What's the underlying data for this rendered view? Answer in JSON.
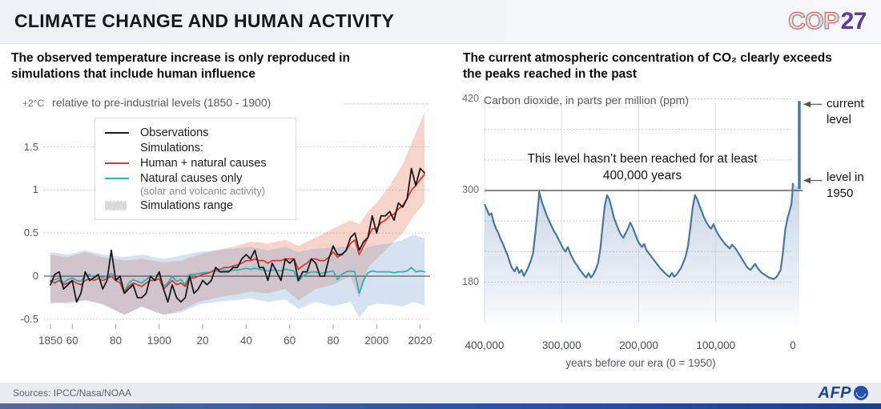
{
  "header": {
    "title": "CLIMATE CHANGE AND HUMAN ACTIVITY",
    "cop27_cop": "COP",
    "cop27_num": "27"
  },
  "footer": {
    "sources": "Sources: IPCC/Nasa/NOAA",
    "afp_label": "AFP"
  },
  "colors": {
    "accent_red": "#d63a30",
    "accent_cyan": "#2eb0c1",
    "obs_black": "#1a1a1a",
    "hn_band": "rgba(230,122,86,0.32)",
    "nat_band": "rgba(128,168,206,0.33)",
    "co2_line": "#4678a4",
    "co2_fill": "rgba(168,188,214,0.6)",
    "reference_line": "#3c3c3c",
    "grid_dot": "#bfc2c6",
    "grid_warm_dot": "#ccb9b1",
    "grid_vertical": "#e0e3e8",
    "header_bg": "#eef0f5",
    "footer_bg": "#e9ebf0",
    "cop_blue": "#c7e4f1",
    "cop_outline": "#da6a5e",
    "cop_purple": "#5e3a90",
    "afp_blue": "#1b449b",
    "bottom_bar_left": "#56679b",
    "bottom_bar_right": "#1c3f8f",
    "text_dark": "#16161c",
    "text_gray": "#55595e"
  },
  "chart_data": [
    {
      "id": "temperature-simulations",
      "type": "line",
      "title": "The observed temperature increase is only reproduced in simulations that include human influence",
      "unit_note_prefix": "+2°C",
      "axis_note": "relative to pre-industrial levels (1850 - 1900)",
      "xlim": [
        1850,
        2022
      ],
      "ylim": [
        -0.6,
        2.0
      ],
      "yticks": {
        "values": [
          1.5,
          1,
          0.5,
          0,
          -0.5
        ],
        "labels": [
          "1.5",
          "1",
          "0.5",
          "0",
          "-0.5"
        ]
      },
      "top_dotted_level": 2,
      "xticks": {
        "values": [
          1850,
          1860,
          1880,
          1900,
          1920,
          1940,
          1960,
          1980,
          2000,
          2020
        ],
        "labels": [
          "1850",
          "60",
          "80",
          "1900",
          "20",
          "40",
          "60",
          "80",
          "2000",
          "2020"
        ]
      },
      "legend": {
        "observations": "Observations",
        "simulations_header": "Simulations:",
        "human_natural": "Human + natural causes",
        "natural_only": "Natural causes only",
        "natural_only_sub": "(solar and volcanic activity)",
        "range": "Simulations range"
      },
      "x": [
        1850,
        1852,
        1854,
        1856,
        1858,
        1860,
        1862,
        1864,
        1866,
        1868,
        1870,
        1872,
        1874,
        1876,
        1878,
        1880,
        1882,
        1884,
        1886,
        1888,
        1890,
        1892,
        1894,
        1896,
        1898,
        1900,
        1902,
        1904,
        1906,
        1908,
        1910,
        1912,
        1914,
        1916,
        1918,
        1920,
        1922,
        1924,
        1926,
        1928,
        1930,
        1932,
        1934,
        1936,
        1938,
        1940,
        1942,
        1944,
        1946,
        1948,
        1950,
        1952,
        1954,
        1956,
        1958,
        1960,
        1962,
        1964,
        1966,
        1968,
        1970,
        1972,
        1974,
        1976,
        1978,
        1980,
        1982,
        1984,
        1986,
        1988,
        1990,
        1992,
        1994,
        1996,
        1998,
        2000,
        2002,
        2004,
        2006,
        2008,
        2010,
        2012,
        2014,
        2016,
        2018,
        2020,
        2022
      ],
      "series": [
        {
          "name": "Observations",
          "color": "#1a1a1a",
          "values": [
            -0.1,
            0.02,
            0.05,
            -0.15,
            -0.1,
            -0.05,
            -0.3,
            -0.2,
            0.05,
            -0.05,
            -0.02,
            0.02,
            -0.15,
            -0.05,
            0.3,
            -0.05,
            0.0,
            -0.2,
            -0.15,
            -0.1,
            -0.25,
            -0.25,
            -0.2,
            0.0,
            -0.05,
            0.05,
            -0.15,
            -0.3,
            -0.1,
            -0.25,
            -0.3,
            -0.25,
            0.0,
            -0.2,
            -0.15,
            -0.05,
            -0.1,
            -0.05,
            0.1,
            0.05,
            0.05,
            0.05,
            0.1,
            0.1,
            0.2,
            0.25,
            0.2,
            0.3,
            0.1,
            0.1,
            -0.05,
            0.15,
            0.05,
            -0.05,
            0.2,
            0.15,
            0.2,
            -0.05,
            0.05,
            0.05,
            0.2,
            0.15,
            0.0,
            0.0,
            0.2,
            0.35,
            0.25,
            0.25,
            0.3,
            0.45,
            0.5,
            0.3,
            0.4,
            0.45,
            0.7,
            0.5,
            0.7,
            0.7,
            0.75,
            0.65,
            0.85,
            0.8,
            0.9,
            1.25,
            1.05,
            1.25,
            1.2
          ]
        },
        {
          "name": "Human + natural causes",
          "color": "#d63a30",
          "values": [
            -0.05,
            -0.08,
            -0.05,
            -0.1,
            -0.08,
            -0.05,
            -0.08,
            -0.1,
            -0.05,
            -0.03,
            -0.05,
            -0.03,
            -0.05,
            -0.03,
            0.0,
            -0.05,
            -0.08,
            -0.2,
            -0.12,
            -0.08,
            -0.1,
            -0.12,
            -0.08,
            -0.05,
            -0.05,
            -0.03,
            -0.15,
            -0.1,
            -0.05,
            -0.1,
            -0.08,
            -0.12,
            -0.02,
            -0.02,
            0.0,
            0.02,
            0.03,
            0.05,
            0.08,
            0.08,
            0.1,
            0.1,
            0.12,
            0.13,
            0.15,
            0.18,
            0.18,
            0.2,
            0.18,
            0.18,
            0.15,
            0.18,
            0.18,
            0.18,
            0.2,
            0.2,
            0.2,
            0.08,
            0.12,
            0.15,
            0.2,
            0.2,
            0.18,
            0.18,
            0.22,
            0.28,
            0.22,
            0.25,
            0.3,
            0.38,
            0.42,
            0.25,
            0.35,
            0.45,
            0.55,
            0.55,
            0.62,
            0.65,
            0.7,
            0.72,
            0.78,
            0.82,
            0.9,
            1.0,
            1.05,
            1.12,
            1.18
          ]
        },
        {
          "name": "Natural causes only",
          "color": "#2eb0c1",
          "values": [
            -0.06,
            -0.04,
            -0.02,
            -0.08,
            -0.04,
            -0.02,
            -0.05,
            -0.06,
            0.0,
            0.02,
            -0.02,
            0.0,
            -0.02,
            0.0,
            0.03,
            -0.02,
            -0.05,
            -0.18,
            -0.08,
            -0.04,
            -0.06,
            -0.08,
            -0.04,
            0.0,
            0.0,
            0.02,
            -0.12,
            -0.08,
            0.0,
            -0.06,
            -0.04,
            -0.1,
            0.02,
            0.02,
            0.03,
            0.04,
            0.04,
            0.05,
            0.06,
            0.05,
            0.07,
            0.06,
            0.07,
            0.07,
            0.08,
            0.09,
            0.08,
            0.09,
            0.08,
            0.07,
            0.06,
            0.07,
            0.07,
            0.06,
            0.08,
            0.07,
            0.06,
            -0.06,
            0.0,
            0.03,
            0.05,
            0.05,
            0.03,
            0.04,
            0.05,
            0.06,
            -0.04,
            0.02,
            0.05,
            0.06,
            0.05,
            -0.2,
            -0.05,
            0.04,
            0.06,
            0.05,
            0.05,
            0.05,
            0.05,
            0.04,
            0.05,
            0.05,
            0.06,
            0.1,
            0.05,
            0.06,
            0.05
          ]
        }
      ],
      "bands": [
        {
          "name": "Human + natural simulations range",
          "color": "rgba(230,122,86,0.32)",
          "years": [
            1850,
            1858,
            1866,
            1874,
            1884,
            1892,
            1902,
            1910,
            1918,
            1926,
            1934,
            1942,
            1950,
            1958,
            1964,
            1972,
            1980,
            1988,
            1992,
            1996,
            2000,
            2006,
            2012,
            2017,
            2022
          ],
          "upper": [
            0.25,
            0.22,
            0.28,
            0.22,
            0.18,
            0.2,
            0.16,
            0.18,
            0.25,
            0.3,
            0.34,
            0.4,
            0.38,
            0.42,
            0.35,
            0.45,
            0.55,
            0.65,
            0.6,
            0.75,
            0.85,
            1.05,
            1.3,
            1.6,
            1.9
          ],
          "lower": [
            -0.32,
            -0.3,
            -0.28,
            -0.32,
            -0.45,
            -0.35,
            -0.45,
            -0.4,
            -0.3,
            -0.25,
            -0.22,
            -0.18,
            -0.2,
            -0.15,
            -0.28,
            -0.15,
            -0.1,
            0.0,
            -0.25,
            0.1,
            0.2,
            0.35,
            0.5,
            0.7,
            0.85
          ]
        },
        {
          "name": "Natural-only simulations range",
          "color": "rgba(128,168,206,0.33)",
          "years": [
            1850,
            1858,
            1866,
            1874,
            1884,
            1892,
            1902,
            1910,
            1918,
            1926,
            1934,
            1942,
            1950,
            1958,
            1964,
            1972,
            1980,
            1988,
            1992,
            1996,
            2000,
            2006,
            2012,
            2017,
            2022
          ],
          "upper": [
            0.28,
            0.25,
            0.3,
            0.25,
            0.22,
            0.25,
            0.2,
            0.24,
            0.28,
            0.3,
            0.32,
            0.34,
            0.3,
            0.34,
            0.28,
            0.32,
            0.33,
            0.35,
            0.28,
            0.34,
            0.36,
            0.38,
            0.42,
            0.48,
            0.44
          ],
          "lower": [
            -0.3,
            -0.32,
            -0.28,
            -0.33,
            -0.45,
            -0.36,
            -0.45,
            -0.42,
            -0.33,
            -0.3,
            -0.28,
            -0.26,
            -0.3,
            -0.27,
            -0.38,
            -0.3,
            -0.35,
            -0.3,
            -0.48,
            -0.35,
            -0.32,
            -0.33,
            -0.35,
            -0.3,
            -0.34
          ]
        }
      ]
    },
    {
      "id": "co2-concentration",
      "type": "area",
      "title": "The current atmospheric concentration of  CO₂ clearly exceeds the peaks reached in the past",
      "ylabel": "Carbon dioxide, in parts per million (ppm)",
      "xlabel": "years before our era (0 = 1950)",
      "annotation_line1": "This level hasn’t been reached for at least",
      "annotation_line2": "400,000 years",
      "current_level_label": "current level",
      "current_level_ppm": 415,
      "level_1950_label": "level in 1950",
      "level_1950_ppm": 311,
      "reference_line_ppm": 300,
      "xlim": [
        400000,
        0
      ],
      "ylim": [
        150,
        430
      ],
      "yticks": {
        "values": [
          420,
          300,
          180
        ],
        "labels": [
          "420",
          "300",
          "180"
        ]
      },
      "xticks": {
        "values": [
          400,
          300,
          200,
          100,
          0
        ],
        "labels": [
          "400,000",
          "300,000",
          "200,000",
          "100,000",
          "0"
        ]
      },
      "grid_ppm": [
        420,
        380,
        340,
        260,
        220
      ],
      "line_color": "#4678a4",
      "points": [
        [
          400,
          282
        ],
        [
          397,
          275
        ],
        [
          394,
          268
        ],
        [
          391,
          270
        ],
        [
          388,
          258
        ],
        [
          385,
          250
        ],
        [
          382,
          244
        ],
        [
          379,
          236
        ],
        [
          376,
          230
        ],
        [
          373,
          222
        ],
        [
          370,
          215
        ],
        [
          367,
          205
        ],
        [
          364,
          198
        ],
        [
          361,
          194
        ],
        [
          358,
          200
        ],
        [
          355,
          192
        ],
        [
          352,
          196
        ],
        [
          349,
          188
        ],
        [
          346,
          194
        ],
        [
          343,
          200
        ],
        [
          340,
          208
        ],
        [
          337,
          218
        ],
        [
          334,
          245
        ],
        [
          331,
          275
        ],
        [
          329,
          298
        ],
        [
          327,
          290
        ],
        [
          325,
          283
        ],
        [
          322,
          275
        ],
        [
          319,
          266
        ],
        [
          316,
          260
        ],
        [
          313,
          253
        ],
        [
          310,
          247
        ],
        [
          307,
          242
        ],
        [
          304,
          236
        ],
        [
          301,
          230
        ],
        [
          298,
          224
        ],
        [
          295,
          220
        ],
        [
          292,
          226
        ],
        [
          289,
          218
        ],
        [
          286,
          212
        ],
        [
          283,
          206
        ],
        [
          280,
          202
        ],
        [
          277,
          197
        ],
        [
          274,
          193
        ],
        [
          271,
          189
        ],
        [
          268,
          186
        ],
        [
          265,
          192
        ],
        [
          262,
          186
        ],
        [
          259,
          190
        ],
        [
          256,
          196
        ],
        [
          253,
          204
        ],
        [
          250,
          222
        ],
        [
          247,
          252
        ],
        [
          244,
          280
        ],
        [
          241,
          294
        ],
        [
          238,
          288
        ],
        [
          235,
          276
        ],
        [
          232,
          264
        ],
        [
          229,
          256
        ],
        [
          226,
          248
        ],
        [
          223,
          242
        ],
        [
          220,
          238
        ],
        [
          217,
          244
        ],
        [
          214,
          250
        ],
        [
          211,
          258
        ],
        [
          208,
          252
        ],
        [
          205,
          244
        ],
        [
          202,
          236
        ],
        [
          199,
          230
        ],
        [
          196,
          226
        ],
        [
          193,
          230
        ],
        [
          190,
          222
        ],
        [
          187,
          218
        ],
        [
          184,
          214
        ],
        [
          181,
          210
        ],
        [
          178,
          206
        ],
        [
          175,
          202
        ],
        [
          172,
          198
        ],
        [
          169,
          195
        ],
        [
          166,
          192
        ],
        [
          163,
          189
        ],
        [
          160,
          187
        ],
        [
          157,
          192
        ],
        [
          154,
          187
        ],
        [
          151,
          190
        ],
        [
          148,
          194
        ],
        [
          145,
          199
        ],
        [
          142,
          206
        ],
        [
          139,
          214
        ],
        [
          136,
          228
        ],
        [
          133,
          252
        ],
        [
          130,
          278
        ],
        [
          127,
          294
        ],
        [
          124,
          288
        ],
        [
          121,
          280
        ],
        [
          118,
          272
        ],
        [
          115,
          264
        ],
        [
          112,
          258
        ],
        [
          109,
          253
        ],
        [
          106,
          250
        ],
        [
          103,
          256
        ],
        [
          100,
          248
        ],
        [
          97,
          243
        ],
        [
          94,
          238
        ],
        [
          91,
          234
        ],
        [
          88,
          230
        ],
        [
          85,
          227
        ],
        [
          82,
          224
        ],
        [
          79,
          229
        ],
        [
          76,
          226
        ],
        [
          73,
          222
        ],
        [
          70,
          217
        ],
        [
          67,
          212
        ],
        [
          64,
          207
        ],
        [
          61,
          202
        ],
        [
          58,
          198
        ],
        [
          55,
          196
        ],
        [
          52,
          200
        ],
        [
          49,
          204
        ],
        [
          46,
          199
        ],
        [
          43,
          195
        ],
        [
          40,
          192
        ],
        [
          37,
          190
        ],
        [
          34,
          188
        ],
        [
          31,
          186
        ],
        [
          28,
          185
        ],
        [
          25,
          184
        ],
        [
          22,
          186
        ],
        [
          19,
          190
        ],
        [
          16,
          196
        ],
        [
          13,
          218
        ],
        [
          10,
          248
        ],
        [
          7,
          264
        ],
        [
          4,
          274
        ],
        [
          2,
          282
        ],
        [
          1,
          292
        ],
        [
          0,
          310
        ]
      ]
    }
  ]
}
